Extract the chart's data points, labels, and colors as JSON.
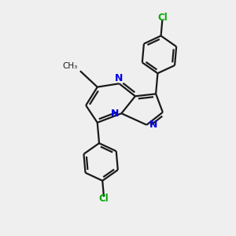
{
  "bg_color": "#efefef",
  "bond_color": "#1a1a1a",
  "nitrogen_color": "#0000ee",
  "chlorine_color": "#00aa00",
  "line_width": 1.6,
  "figsize": [
    3.0,
    3.0
  ],
  "dpi": 100,
  "xlim": [
    0,
    10
  ],
  "ylim": [
    0,
    10
  ]
}
